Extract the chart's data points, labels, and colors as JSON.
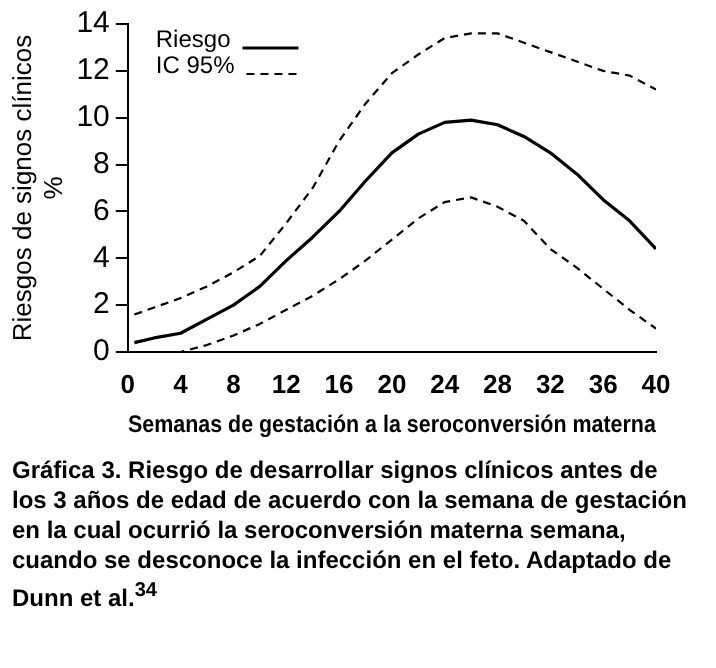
{
  "chart_data": {
    "type": "line",
    "xlabel": "Semanas de gestación a la seroconversión materna",
    "ylabel": "Riesgos de signos clínicos\n%",
    "x": [
      0.5,
      2,
      4,
      6,
      8,
      10,
      12,
      14,
      16,
      18,
      20,
      22,
      24,
      26,
      28,
      30,
      32,
      34,
      36,
      38,
      40
    ],
    "series": [
      {
        "name": "Riesgo",
        "color": "#000000",
        "line_style": "solid",
        "values": [
          0.4,
          0.6,
          0.8,
          1.4,
          2.0,
          2.8,
          3.9,
          4.9,
          6.0,
          7.3,
          8.5,
          9.3,
          9.8,
          9.9,
          9.7,
          9.2,
          8.5,
          7.6,
          6.5,
          5.6,
          4.4
        ]
      },
      {
        "name": "IC 95%",
        "color": "#000000",
        "line_style": "dashed",
        "values": [
          1.6,
          1.9,
          2.3,
          2.8,
          3.4,
          4.1,
          5.5,
          7.0,
          9.0,
          10.6,
          11.9,
          12.7,
          13.4,
          13.6,
          13.6,
          13.2,
          12.8,
          12.4,
          12.0,
          11.8,
          11.2
        ]
      },
      {
        "color": "#000000",
        "line_style": "dashed",
        "values": [
          0.0,
          0.0,
          0.0,
          0.3,
          0.7,
          1.2,
          1.8,
          2.4,
          3.1,
          3.9,
          4.8,
          5.7,
          6.4,
          6.6,
          6.2,
          5.6,
          4.4,
          3.6,
          2.7,
          1.8,
          1.0
        ]
      }
    ],
    "xlim": [
      0,
      40
    ],
    "xticks": [
      0,
      4,
      8,
      12,
      16,
      20,
      24,
      28,
      32,
      36,
      40
    ],
    "ylim": [
      0,
      14
    ],
    "yticks": [
      0,
      2,
      4,
      6,
      8,
      10,
      12,
      14
    ],
    "grid": false,
    "legend": "top left",
    "marker": "none",
    "annotations": [
      "Gráfica 3. Riesgo de desarrollar signos clínicos antes de los 3 años de edad de acuerdo con la semana de gestación en la cual ocurrió la seroconversión materna semana, cuando se desconoce la infección en el feto. Adaptado de Dunn et al.$^{34}$"
    ]
  }
}
